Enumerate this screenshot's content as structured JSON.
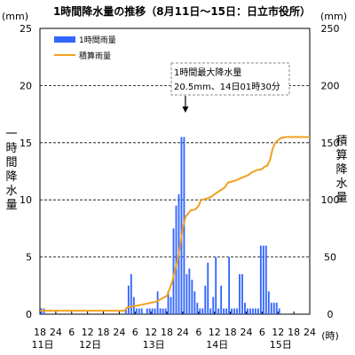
{
  "chart_data": {
    "type": "bar",
    "title": "1時間降水量の推移（8月11日～15日：日立市役所）",
    "left_unit": "(mm)",
    "right_unit": "(mm)",
    "ylabel": "一時間降水量",
    "y2label": "積算降水量",
    "x_unit": "(時)",
    "ylim": [
      0,
      25
    ],
    "y2lim": [
      0,
      250
    ],
    "yticks": [
      0,
      5,
      10,
      15,
      20,
      25
    ],
    "y2ticks": [
      0,
      50,
      100,
      150,
      200,
      250
    ],
    "x_start": "11日18時",
    "x_hours_total": 102,
    "xtick_labels": [
      "18",
      "24",
      "6",
      "12",
      "18",
      "24",
      "6",
      "12",
      "18",
      "24",
      "6",
      "12",
      "18",
      "24",
      "6",
      "12",
      "18",
      "24"
    ],
    "day_labels": [
      {
        "label": "11日",
        "hour": 0
      },
      {
        "label": "12日",
        "hour": 18
      },
      {
        "label": "13日",
        "hour": 42
      },
      {
        "label": "14日",
        "hour": 66
      },
      {
        "label": "15日",
        "hour": 90
      }
    ],
    "legend": {
      "position": "top-left"
    },
    "annotation": {
      "line1": "1時間最大降水量",
      "line2": "20.5mm、14日01時30分",
      "target_hour": 55
    },
    "grid": true,
    "colors": {
      "bars": "#3366ff",
      "line": "#f0a020"
    },
    "series": [
      {
        "name": "1時間雨量",
        "type": "bar",
        "values": [
          0.5,
          0.5,
          0,
          0,
          0,
          0,
          0,
          0,
          0,
          0,
          0,
          0,
          0,
          0,
          0,
          0,
          0,
          0,
          0,
          0,
          0,
          0,
          0,
          0,
          0,
          0,
          0,
          0,
          0,
          0,
          0,
          0,
          0.5,
          2.5,
          3.5,
          1.5,
          0.5,
          0.5,
          0.5,
          0,
          0.5,
          0.5,
          0.5,
          0.5,
          2,
          0.5,
          0.5,
          0.5,
          2,
          1.5,
          7.5,
          9.5,
          10.5,
          15.5,
          15.5,
          3.5,
          4,
          3,
          2,
          1,
          0.5,
          0.5,
          2.5,
          4.5,
          0.5,
          1.5,
          5,
          0.5,
          2.5,
          0.5,
          0.5,
          5,
          0.5,
          0.5,
          0.5,
          3.5,
          3.5,
          1,
          0.5,
          0.5,
          0.5,
          0.5,
          0.5,
          6,
          6,
          6,
          2,
          1,
          1,
          1,
          0.5,
          0,
          0,
          0,
          0,
          0,
          0,
          0,
          0,
          0,
          0,
          0,
          0,
          0
        ]
      },
      {
        "name": "積算雨量",
        "type": "line",
        "axis": "right",
        "x": [
          0,
          32,
          33,
          38,
          44,
          48,
          49,
          50,
          51,
          52,
          53,
          54,
          55,
          56,
          57,
          58,
          59,
          60,
          61,
          63,
          65,
          66,
          68,
          70,
          71,
          74,
          76,
          77,
          79,
          80,
          82,
          84,
          85,
          86,
          87,
          88,
          89,
          90,
          91,
          93,
          95,
          98,
          102
        ],
        "values": [
          3,
          3,
          6,
          8,
          11,
          16,
          22,
          28,
          38,
          47,
          60,
          75,
          85,
          88,
          91,
          91,
          92,
          95,
          100,
          101,
          103,
          105,
          108,
          111,
          115,
          117,
          119,
          120,
          122,
          124,
          126,
          127,
          129,
          130,
          135,
          145,
          150,
          152,
          154,
          155,
          155,
          155,
          155
        ]
      }
    ]
  }
}
